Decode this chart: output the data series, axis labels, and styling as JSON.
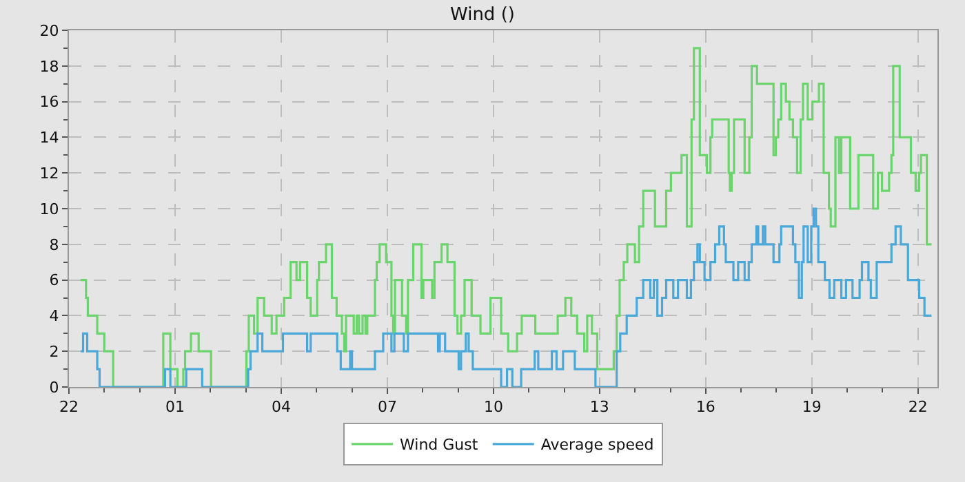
{
  "chart_data": {
    "type": "step",
    "title": "Wind ()",
    "grid": true,
    "legend": "bottom",
    "marker": "none",
    "line_style": "solid",
    "xlim": [
      "--01-01T22:00",
      "--01-02T22:33"
    ],
    "xticks": [
      {
        "value": "--01-01T22:00",
        "label": "22"
      },
      {
        "value": "--01-01T23:00",
        "label": null
      },
      {
        "value": "--01-02T00:00",
        "label": null
      },
      {
        "value": "--01-02T01:00",
        "label": "01"
      },
      {
        "value": "--01-02T02:00",
        "label": null
      },
      {
        "value": "--01-02T03:00",
        "label": null
      },
      {
        "value": "--01-02T04:00",
        "label": "04"
      },
      {
        "value": "--01-02T05:00",
        "label": null
      },
      {
        "value": "--01-02T06:00",
        "label": null
      },
      {
        "value": "--01-02T07:00",
        "label": "07"
      },
      {
        "value": "--01-02T08:00",
        "label": null
      },
      {
        "value": "--01-02T09:00",
        "label": null
      },
      {
        "value": "--01-02T10:00",
        "label": "10"
      },
      {
        "value": "--01-02T11:00",
        "label": null
      },
      {
        "value": "--01-02T12:00",
        "label": null
      },
      {
        "value": "--01-02T13:00",
        "label": "13"
      },
      {
        "value": "--01-02T14:00",
        "label": null
      },
      {
        "value": "--01-02T15:00",
        "label": null
      },
      {
        "value": "--01-02T16:00",
        "label": "16"
      },
      {
        "value": "--01-02T17:00",
        "label": null
      },
      {
        "value": "--01-02T18:00",
        "label": null
      },
      {
        "value": "--01-02T19:00",
        "label": "19"
      },
      {
        "value": "--01-02T20:00",
        "label": null
      },
      {
        "value": "--01-02T21:00",
        "label": null
      },
      {
        "value": "--01-02T22:00",
        "label": "22"
      }
    ],
    "ylim": [
      0,
      20
    ],
    "yticks": [
      0,
      {
        "value": 1,
        "label": null
      },
      2,
      {
        "value": 3,
        "label": null
      },
      4,
      {
        "value": 5,
        "label": null
      },
      6,
      {
        "value": 7,
        "label": null
      },
      8,
      {
        "value": 9,
        "label": null
      },
      10,
      {
        "value": 11,
        "label": null
      },
      12,
      {
        "value": 13,
        "label": null
      },
      14,
      {
        "value": 15,
        "label": null
      },
      16,
      {
        "value": 17,
        "label": null
      },
      18,
      {
        "value": 19,
        "label": null
      },
      20
    ],
    "series": [
      {
        "name": "Wind Gust",
        "color": "#6cd46c",
        "x": [
          "--01-01T22:20",
          "--01-01T22:29",
          "--01-01T22:32",
          "--01-01T22:48",
          "--01-01T23:00",
          "--01-01T23:15",
          "--01-02T00:40",
          "--01-02T00:52",
          "--01-02T01:04",
          "--01-02T01:14",
          "--01-02T01:17",
          "--01-02T01:27",
          "--01-02T01:40",
          "--01-02T02:01",
          "--01-02T03:01",
          "--01-02T03:05",
          "--01-02T03:14",
          "--01-02T03:20",
          "--01-02T03:31",
          "--01-02T03:44",
          "--01-02T03:52",
          "--01-02T03:54",
          "--01-02T04:05",
          "--01-02T04:16",
          "--01-02T04:26",
          "--01-02T04:32",
          "--01-02T04:44",
          "--01-02T04:50",
          "--01-02T05:01",
          "--01-02T05:04",
          "--01-02T05:16",
          "--01-02T05:26",
          "--01-02T05:34",
          "--01-02T05:43",
          "--01-02T05:47",
          "--01-02T05:50",
          "--01-02T06:03",
          "--01-02T06:08",
          "--01-02T06:12",
          "--01-02T06:18",
          "--01-02T06:23",
          "--01-02T06:26",
          "--01-02T06:39",
          "--01-02T06:42",
          "--01-02T06:47",
          "--01-02T06:58",
          "--01-02T07:07",
          "--01-02T07:10",
          "--01-02T07:13",
          "--01-02T07:25",
          "--01-02T07:32",
          "--01-02T07:35",
          "--01-02T07:44",
          "--01-02T07:58",
          "--01-02T08:01",
          "--01-02T08:16",
          "--01-02T08:20",
          "--01-02T08:32",
          "--01-02T08:42",
          "--01-02T08:54",
          "--01-02T08:59",
          "--01-02T09:05",
          "--01-02T09:11",
          "--01-02T09:23",
          "--01-02T09:38",
          "--01-02T09:55",
          "--01-02T10:13",
          "--01-02T10:25",
          "--01-02T10:40",
          "--01-02T10:48",
          "--01-02T11:11",
          "--01-02T11:49",
          "--01-02T12:02",
          "--01-02T12:12",
          "--01-02T12:22",
          "--01-02T12:34",
          "--01-02T12:39",
          "--01-02T12:47",
          "--01-02T12:56",
          "--01-02T13:24",
          "--01-02T13:29",
          "--01-02T13:34",
          "--01-02T13:41",
          "--01-02T13:47",
          "--01-02T14:00",
          "--01-02T14:07",
          "--01-02T14:14",
          "--01-02T14:34",
          "--01-02T14:53",
          "--01-02T15:01",
          "--01-02T15:19",
          "--01-02T15:28",
          "--01-02T15:36",
          "--01-02T15:40",
          "--01-02T15:50",
          "--01-02T16:02",
          "--01-02T16:08",
          "--01-02T16:11",
          "--01-02T16:39",
          "--01-02T16:41",
          "--01-02T16:44",
          "--01-02T16:48",
          "--01-02T17:06",
          "--01-02T17:14",
          "--01-02T17:18",
          "--01-02T17:27",
          "--01-02T17:55",
          "--01-02T17:59",
          "--01-02T18:03",
          "--01-02T18:08",
          "--01-02T18:16",
          "--01-02T18:22",
          "--01-02T18:28",
          "--01-02T18:35",
          "--01-02T18:41",
          "--01-02T18:45",
          "--01-02T18:53",
          "--01-02T19:01",
          "--01-02T19:12",
          "--01-02T19:20",
          "--01-02T19:29",
          "--01-02T19:32",
          "--01-02T19:40",
          "--01-02T19:46",
          "--01-02T19:50",
          "--01-02T20:05",
          "--01-02T20:19",
          "--01-02T20:44",
          "--01-02T20:52",
          "--01-02T20:59",
          "--01-02T21:11",
          "--01-02T21:15",
          "--01-02T21:18",
          "--01-02T21:29",
          "--01-02T21:48",
          "--01-02T21:56",
          "--01-02T22:02",
          "--01-02T22:05",
          "--01-02T22:15",
          "--01-02T22:23"
        ],
        "values": [
          6,
          5,
          4,
          3,
          2,
          0,
          3,
          1,
          0,
          1,
          2,
          3,
          2,
          0,
          2,
          4,
          3,
          5,
          4,
          3,
          4,
          4,
          5,
          7,
          6,
          7,
          5,
          4,
          6,
          7,
          8,
          5,
          4,
          3,
          2,
          4,
          3,
          4,
          3,
          4,
          3,
          4,
          6,
          7,
          8,
          7,
          4,
          3,
          6,
          4,
          3,
          6,
          8,
          5,
          6,
          5,
          7,
          8,
          7,
          4,
          3,
          4,
          6,
          4,
          3,
          5,
          3,
          2,
          3,
          4,
          3,
          4,
          5,
          4,
          3,
          2,
          4,
          3,
          1,
          2,
          4,
          6,
          7,
          8,
          7,
          9,
          11,
          9,
          11,
          12,
          13,
          9,
          15,
          19,
          13,
          12,
          14,
          15,
          12,
          11,
          12,
          15,
          12,
          14,
          18,
          17,
          13,
          14,
          15,
          17,
          16,
          15,
          14,
          12,
          15,
          17,
          15,
          16,
          17,
          12,
          10,
          9,
          14,
          12,
          14,
          10,
          13,
          10,
          12,
          11,
          12,
          13,
          18,
          14,
          12,
          11,
          12,
          13,
          8,
          8
        ]
      },
      {
        "name": "Average speed",
        "color": "#4aa8d8",
        "x": [
          "--01-01T22:20",
          "--01-01T22:24",
          "--01-01T22:31",
          "--01-01T22:48",
          "--01-01T22:52",
          "--01-02T00:43",
          "--01-02T00:52",
          "--01-02T01:19",
          "--01-02T01:46",
          "--01-02T03:04",
          "--01-02T03:08",
          "--01-02T03:20",
          "--01-02T03:28",
          "--01-02T04:03",
          "--01-02T04:44",
          "--01-02T04:50",
          "--01-02T05:35",
          "--01-02T05:41",
          "--01-02T05:57",
          "--01-02T06:00",
          "--01-02T06:39",
          "--01-02T06:53",
          "--01-02T07:07",
          "--01-02T07:12",
          "--01-02T07:28",
          "--01-02T07:35",
          "--01-02T08:26",
          "--01-02T08:29",
          "--01-02T08:38",
          "--01-02T09:01",
          "--01-02T09:05",
          "--01-02T09:13",
          "--01-02T09:18",
          "--01-02T09:25",
          "--01-02T10:13",
          "--01-02T10:23",
          "--01-02T10:32",
          "--01-02T10:47",
          "--01-02T11:10",
          "--01-02T11:16",
          "--01-02T11:39",
          "--01-02T11:47",
          "--01-02T11:58",
          "--01-02T12:18",
          "--01-02T12:53",
          "--01-02T13:29",
          "--01-02T13:35",
          "--01-02T13:46",
          "--01-02T14:03",
          "--01-02T14:14",
          "--01-02T14:26",
          "--01-02T14:32",
          "--01-02T14:38",
          "--01-02T14:46",
          "--01-02T14:53",
          "--01-02T15:05",
          "--01-02T15:13",
          "--01-02T15:28",
          "--01-02T15:35",
          "--01-02T15:40",
          "--01-02T15:46",
          "--01-02T15:50",
          "--01-02T15:58",
          "--01-02T16:08",
          "--01-02T16:16",
          "--01-02T16:23",
          "--01-02T16:31",
          "--01-02T16:34",
          "--01-02T16:47",
          "--01-02T16:55",
          "--01-02T17:06",
          "--01-02T17:13",
          "--01-02T17:18",
          "--01-02T17:26",
          "--01-02T17:29",
          "--01-02T17:37",
          "--01-02T17:41",
          "--01-02T17:55",
          "--01-02T18:05",
          "--01-02T18:08",
          "--01-02T18:28",
          "--01-02T18:32",
          "--01-02T18:38",
          "--01-02T18:43",
          "--01-02T18:46",
          "--01-02T18:53",
          "--01-02T18:59",
          "--01-02T19:03",
          "--01-02T19:07",
          "--01-02T19:11",
          "--01-02T19:22",
          "--01-02T19:30",
          "--01-02T19:38",
          "--01-02T19:50",
          "--01-02T19:58",
          "--01-02T20:09",
          "--01-02T20:21",
          "--01-02T20:25",
          "--01-02T20:36",
          "--01-02T20:40",
          "--01-02T20:50",
          "--01-02T21:15",
          "--01-02T21:22",
          "--01-02T21:31",
          "--01-02T21:43",
          "--01-02T22:02",
          "--01-02T22:11",
          "--01-02T22:23"
        ],
        "values": [
          2,
          3,
          2,
          1,
          0,
          1,
          0,
          1,
          0,
          1,
          2,
          3,
          2,
          3,
          2,
          3,
          2,
          1,
          2,
          1,
          2,
          3,
          2,
          3,
          2,
          3,
          2,
          3,
          2,
          1,
          2,
          3,
          2,
          1,
          0,
          1,
          0,
          1,
          2,
          1,
          2,
          1,
          2,
          1,
          0,
          2,
          3,
          4,
          5,
          6,
          5,
          6,
          4,
          5,
          6,
          5,
          6,
          5,
          6,
          7,
          8,
          7,
          6,
          7,
          8,
          9,
          8,
          7,
          6,
          7,
          6,
          7,
          8,
          9,
          8,
          9,
          8,
          7,
          8,
          9,
          8,
          7,
          5,
          7,
          9,
          7,
          9,
          10,
          9,
          7,
          6,
          5,
          6,
          5,
          6,
          5,
          6,
          7,
          6,
          5,
          7,
          8,
          9,
          8,
          6,
          5,
          4,
          4
        ]
      }
    ]
  }
}
